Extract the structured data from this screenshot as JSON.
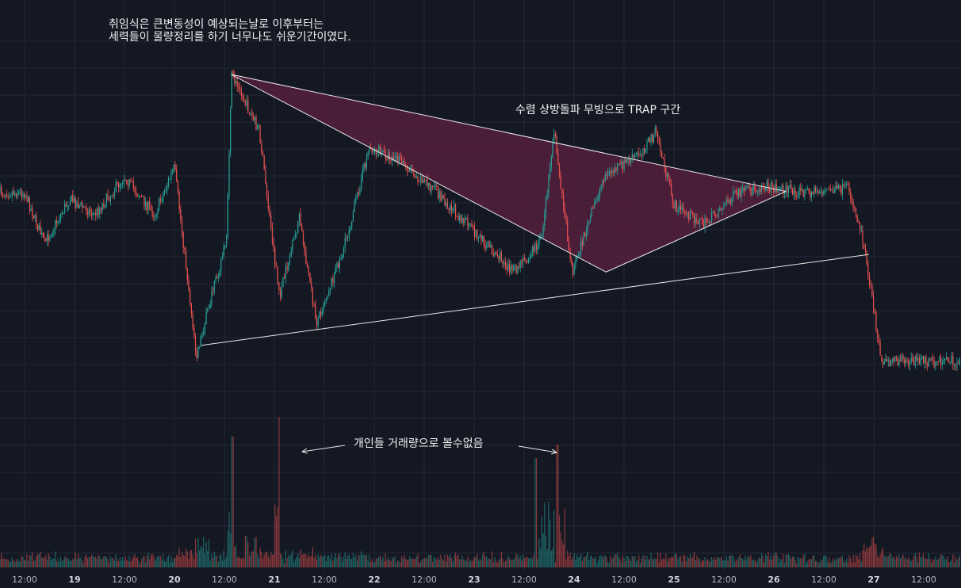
{
  "annotations": {
    "top_note_line1": "취임식은 큰변동성이 예상되는날로 이후부터는",
    "top_note_line2": "세력들이 물량정리를 하기 너무나도 쉬운기간이였다.",
    "trap_note": "수렴 상방돌파 무빙으로 TRAP 구간",
    "volume_note": "개인들 거래량으로 볼수없음"
  },
  "colors": {
    "background": "#141823",
    "grid": "#222735",
    "up": "#26a69a",
    "down": "#ef5350",
    "triangle_fill": "#5a1f3f",
    "trendline": "#e8e8e8",
    "axis_text": "#b2b5be"
  },
  "chart_data": {
    "type": "candlestick",
    "x_axis_ticks": [
      "12:00",
      "19",
      "12:00",
      "20",
      "12:00",
      "21",
      "12:00",
      "22",
      "12:00",
      "23",
      "12:00",
      "24",
      "12:00",
      "25",
      "12:00",
      "26",
      "12:00",
      "27",
      "12:00"
    ],
    "day_ticks": [
      "19",
      "20",
      "21",
      "22",
      "23",
      "24",
      "25",
      "26",
      "27"
    ],
    "price_path": [
      {
        "t": 0,
        "v": 0.63
      },
      {
        "t": 0.2,
        "v": 0.47
      },
      {
        "t": 0.45,
        "v": 0.61
      },
      {
        "t": 0.7,
        "v": 0.56
      },
      {
        "t": 1.0,
        "v": 0.68
      },
      {
        "t": 1.3,
        "v": 0.56
      },
      {
        "t": 1.5,
        "v": 0.71
      },
      {
        "t": 1.72,
        "v": 0.12
      },
      {
        "t": 2.02,
        "v": 0.48
      },
      {
        "t": 2.07,
        "v": 1.0
      },
      {
        "t": 2.35,
        "v": 0.82
      },
      {
        "t": 2.55,
        "v": 0.3
      },
      {
        "t": 2.75,
        "v": 0.55
      },
      {
        "t": 2.92,
        "v": 0.22
      },
      {
        "t": 3.2,
        "v": 0.46
      },
      {
        "t": 3.45,
        "v": 0.77
      },
      {
        "t": 3.75,
        "v": 0.73
      },
      {
        "t": 4.1,
        "v": 0.64
      },
      {
        "t": 4.55,
        "v": 0.49
      },
      {
        "t": 4.9,
        "v": 0.38
      },
      {
        "t": 5.17,
        "v": 0.48
      },
      {
        "t": 5.3,
        "v": 0.82
      },
      {
        "t": 5.48,
        "v": 0.38
      },
      {
        "t": 5.8,
        "v": 0.68
      },
      {
        "t": 6.15,
        "v": 0.75
      },
      {
        "t": 6.32,
        "v": 0.82
      },
      {
        "t": 6.5,
        "v": 0.59
      },
      {
        "t": 6.8,
        "v": 0.53
      },
      {
        "t": 7.1,
        "v": 0.62
      },
      {
        "t": 7.4,
        "v": 0.65
      },
      {
        "t": 7.8,
        "v": 0.63
      },
      {
        "t": 8.25,
        "v": 0.64
      },
      {
        "t": 8.38,
        "v": 0.5
      },
      {
        "t": 8.58,
        "v": 0.1
      }
    ],
    "x_day_range": [
      0,
      8.6
    ],
    "y_norm_range": [
      0,
      1.02
    ]
  }
}
